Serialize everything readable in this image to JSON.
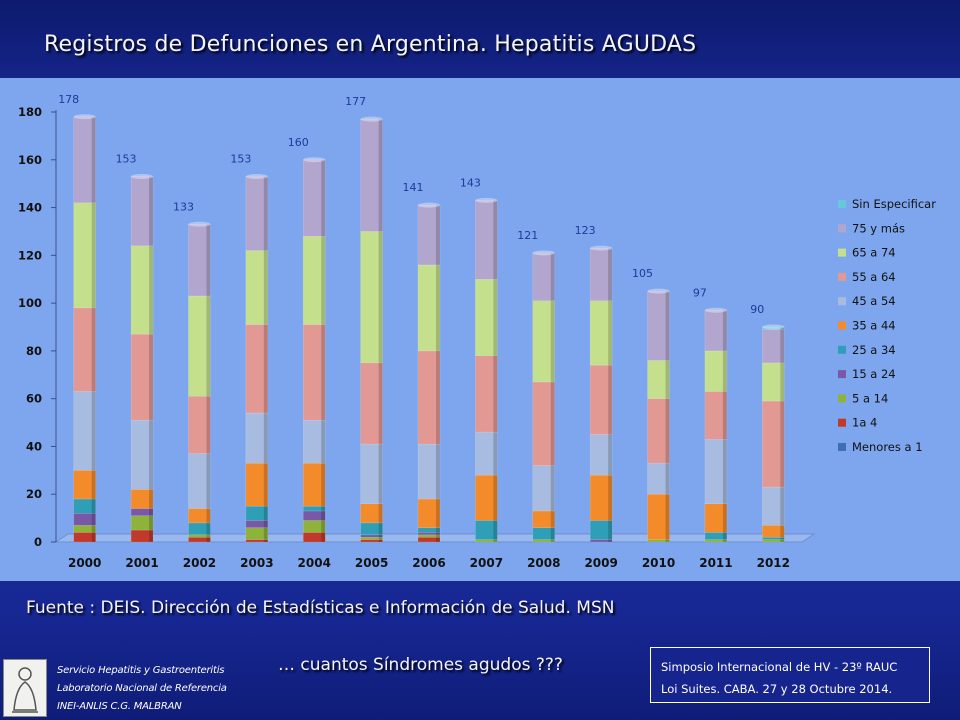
{
  "header": {
    "title": "Registros de Defunciones en Argentina.  Hepatitis AGUDAS"
  },
  "footer": {
    "source": "Fuente : DEIS. Dirección de Estadísticas  e Información de Salud. MSN",
    "question": "… cuantos Síndromes agudos ???",
    "institution": [
      "Servicio Hepatitis y Gastroenteritis",
      "Laboratorio Nacional de Referencia",
      "INEI-ANLIS C.G. MALBRAN"
    ],
    "symposium": [
      "Simposio Internacional de HV - 23º RAUC",
      "Loi Suites. CABA.  27 y 28  Octubre 2014."
    ]
  },
  "colors": {
    "chart_background": "#7ea6ee",
    "title_text": "#f4f4ff",
    "data_label": "#1f3a9a"
  },
  "chart_data": {
    "type": "bar",
    "stacked": true,
    "categories": [
      "2000",
      "2001",
      "2002",
      "2003",
      "2004",
      "2005",
      "2006",
      "2007",
      "2008",
      "2009",
      "2010",
      "2011",
      "2012"
    ],
    "totals": [
      178,
      153,
      133,
      153,
      160,
      177,
      141,
      143,
      121,
      123,
      105,
      97,
      90
    ],
    "ylim": [
      0,
      180
    ],
    "yticks": [
      0,
      20,
      40,
      60,
      80,
      100,
      120,
      140,
      160,
      180
    ],
    "legend_position": "right",
    "grid": false,
    "series": [
      {
        "name": "Menores a 1",
        "color": "#3d6fb4",
        "values": [
          0,
          0,
          0,
          0,
          0,
          0,
          0,
          0,
          0,
          0,
          0,
          0,
          0
        ]
      },
      {
        "name": "1a 4",
        "color": "#c0392b",
        "values": [
          4,
          5,
          2,
          1,
          4,
          1,
          2,
          0,
          0,
          0,
          0,
          0,
          0
        ]
      },
      {
        "name": "5 a 14",
        "color": "#8db33a",
        "values": [
          3,
          6,
          1,
          5,
          5,
          1,
          1,
          1,
          1,
          0,
          1,
          1,
          1
        ]
      },
      {
        "name": "15 a 24",
        "color": "#7a58a8",
        "values": [
          5,
          3,
          0,
          3,
          4,
          1,
          1,
          0,
          0,
          1,
          0,
          0,
          0
        ]
      },
      {
        "name": "25 a 34",
        "color": "#2f9fb8",
        "values": [
          6,
          0,
          5,
          6,
          2,
          5,
          2,
          8,
          5,
          8,
          0,
          3,
          1
        ]
      },
      {
        "name": "35 a 44",
        "color": "#f38b2a",
        "values": [
          12,
          8,
          6,
          18,
          18,
          8,
          12,
          19,
          7,
          19,
          19,
          12,
          5
        ]
      },
      {
        "name": "45 a 54",
        "color": "#a7bce0",
        "values": [
          33,
          29,
          23,
          21,
          18,
          25,
          23,
          18,
          19,
          17,
          13,
          27,
          16
        ]
      },
      {
        "name": "55 a 64",
        "color": "#e29994",
        "values": [
          35,
          36,
          24,
          37,
          40,
          34,
          39,
          32,
          35,
          29,
          27,
          20,
          36
        ]
      },
      {
        "name": "65 a 74",
        "color": "#c5e08d",
        "values": [
          44,
          37,
          42,
          31,
          37,
          55,
          36,
          32,
          34,
          27,
          16,
          17,
          16
        ]
      },
      {
        "name": "75 y más",
        "color": "#b2a6cf",
        "values": [
          36,
          29,
          30,
          31,
          32,
          47,
          25,
          33,
          20,
          22,
          29,
          17,
          14
        ]
      },
      {
        "name": "Sin Especificar",
        "color": "#66c8dd",
        "values": [
          0,
          0,
          0,
          0,
          0,
          0,
          0,
          0,
          0,
          0,
          0,
          0,
          1
        ]
      }
    ]
  }
}
